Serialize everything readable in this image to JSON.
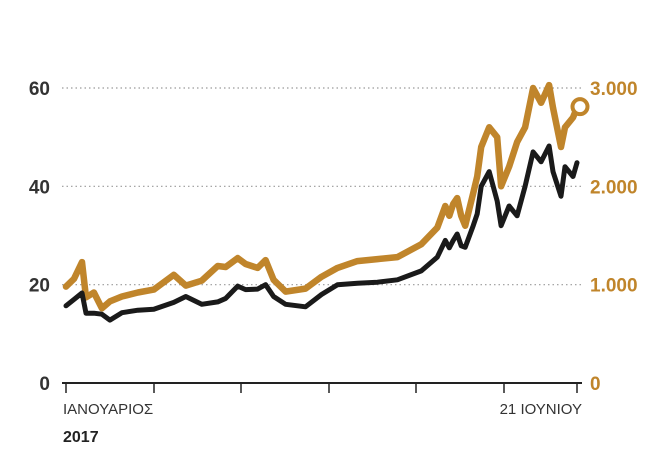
{
  "chart_data": {
    "type": "line",
    "title": "",
    "xlabel": "",
    "ylabel": "",
    "x_tick_labels": [
      "ΙΑΝΟΥΑΡΙΟΣ",
      "21 ΙΟΥΝΙΟΥ"
    ],
    "year_label": "2017",
    "y_left": {
      "ticks": [
        "0",
        "20",
        "40",
        "60"
      ],
      "ylim": [
        0,
        60
      ]
    },
    "y_right": {
      "ticks": [
        "0",
        "1.000",
        "2.000",
        "3.000"
      ],
      "ylim": [
        0,
        3000
      ]
    },
    "grid": "dotted horizontal",
    "series": [
      {
        "axis": "right",
        "color": "#c0852b",
        "x": [
          0,
          2,
          4,
          5,
          7,
          9,
          11,
          14,
          18,
          22,
          27,
          30,
          34,
          38,
          40,
          43,
          45,
          48,
          50,
          52,
          55,
          60,
          64,
          68,
          73,
          78,
          83,
          89,
          93,
          95,
          96,
          97,
          98,
          99,
          100,
          102,
          103,
          104,
          106,
          108,
          109,
          111,
          113,
          115,
          117,
          119,
          121,
          122,
          124,
          125,
          127,
          128
        ],
        "values": [
          980,
          1060,
          1230,
          870,
          920,
          760,
          830,
          880,
          920,
          950,
          1100,
          990,
          1040,
          1190,
          1180,
          1270,
          1210,
          1170,
          1250,
          1050,
          930,
          960,
          1080,
          1170,
          1240,
          1260,
          1280,
          1410,
          1580,
          1800,
          1700,
          1820,
          1880,
          1700,
          1600,
          1930,
          2100,
          2400,
          2600,
          2500,
          2000,
          2200,
          2450,
          2600,
          3000,
          2850,
          3030,
          2800,
          2400,
          2600,
          2700,
          2800
        ],
        "end_marker": true
      },
      {
        "axis": "left",
        "color": "#1a1a1a",
        "x": [
          0,
          2,
          4,
          5,
          7,
          9,
          11,
          14,
          18,
          22,
          27,
          30,
          34,
          38,
          40,
          43,
          45,
          48,
          50,
          52,
          55,
          60,
          64,
          68,
          73,
          78,
          83,
          89,
          93,
          95,
          96,
          97,
          98,
          99,
          100,
          102,
          103,
          104,
          106,
          108,
          109,
          111,
          113,
          115,
          117,
          119,
          121,
          122,
          124,
          125,
          127,
          128
        ],
        "values": [
          15.7,
          17,
          18.3,
          14.2,
          14.2,
          14,
          12.8,
          14.3,
          14.8,
          15,
          16.4,
          17.6,
          16,
          16.5,
          17.2,
          19.7,
          19,
          19.1,
          20,
          17.6,
          16,
          15.5,
          18,
          20,
          20.3,
          20.5,
          21,
          22.8,
          25.6,
          29,
          27.5,
          29,
          30.3,
          27.9,
          27.6,
          32,
          34.4,
          40,
          43,
          37,
          32,
          36,
          34,
          40,
          47,
          45,
          48.2,
          43,
          38,
          44,
          42,
          44.8
        ]
      }
    ]
  }
}
